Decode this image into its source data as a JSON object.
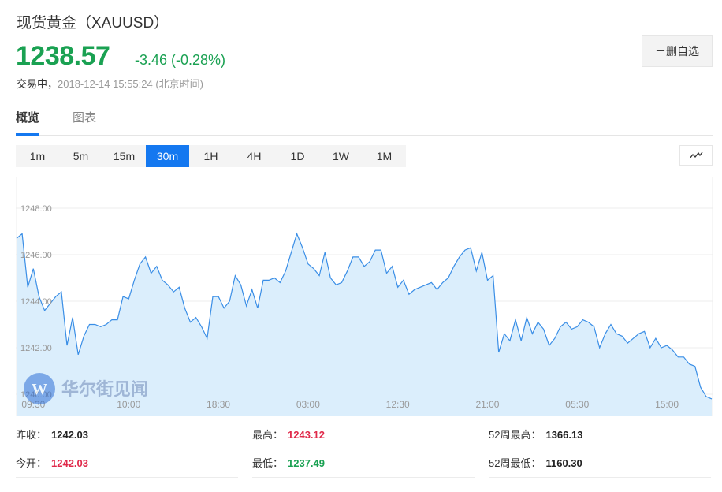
{
  "header": {
    "title": "现货黄金（XAUUSD）",
    "price": "1238.57",
    "change": "-3.46 (-0.28%)",
    "status_label": "交易中，",
    "status_time": "2018-12-14 15:55:24 (北京时间)",
    "watch_button": "－删自选"
  },
  "tabs": [
    {
      "label": "概览",
      "active": true
    },
    {
      "label": "图表",
      "active": false
    }
  ],
  "periods": [
    {
      "label": "1m",
      "active": false
    },
    {
      "label": "5m",
      "active": false
    },
    {
      "label": "15m",
      "active": false
    },
    {
      "label": "30m",
      "active": true
    },
    {
      "label": "1H",
      "active": false
    },
    {
      "label": "4H",
      "active": false
    },
    {
      "label": "1D",
      "active": false
    },
    {
      "label": "1W",
      "active": false
    },
    {
      "label": "1M",
      "active": false
    }
  ],
  "chart_type_icon": "line-chart-icon",
  "watermark": "华尔街见闻",
  "colors": {
    "up_green": "#1aa152",
    "down_red": "#e0294a",
    "accent_blue": "#1478f0",
    "line": "#3a8ee6",
    "area": "#dbeefc"
  },
  "chart_data": {
    "type": "area",
    "y_ticks": [
      "1248.00",
      "1246.00",
      "1244.00",
      "1242.00",
      "1240.00"
    ],
    "x_ticks": [
      "09:30",
      "10:00",
      "18:30",
      "03:00",
      "12:30",
      "21:00",
      "05:30",
      "15:00"
    ],
    "x_tick_index": [
      3,
      20,
      36,
      52,
      68,
      84,
      100,
      116
    ],
    "ylim": [
      1240.0,
      1248.0
    ],
    "grid": true,
    "values": [
      1246.7,
      1246.9,
      1244.6,
      1245.4,
      1244.2,
      1243.6,
      1243.9,
      1244.2,
      1244.4,
      1242.1,
      1243.3,
      1241.7,
      1242.5,
      1243.0,
      1243.0,
      1242.9,
      1243.0,
      1243.2,
      1243.2,
      1244.2,
      1244.1,
      1244.9,
      1245.6,
      1245.9,
      1245.2,
      1245.5,
      1244.9,
      1244.7,
      1244.4,
      1244.6,
      1243.7,
      1243.1,
      1243.3,
      1242.9,
      1242.4,
      1244.2,
      1244.2,
      1243.7,
      1244.0,
      1245.1,
      1244.7,
      1243.8,
      1244.5,
      1243.7,
      1244.9,
      1244.9,
      1245.0,
      1244.8,
      1245.3,
      1246.1,
      1246.9,
      1246.3,
      1245.6,
      1245.4,
      1245.1,
      1246.1,
      1245.0,
      1244.7,
      1244.8,
      1245.3,
      1245.9,
      1245.9,
      1245.5,
      1245.7,
      1246.2,
      1246.2,
      1245.2,
      1245.5,
      1244.6,
      1244.9,
      1244.3,
      1244.5,
      1244.6,
      1244.7,
      1244.8,
      1244.5,
      1244.8,
      1245.0,
      1245.5,
      1245.9,
      1246.2,
      1246.3,
      1245.3,
      1246.1,
      1244.9,
      1245.1,
      1241.8,
      1242.6,
      1242.3,
      1243.2,
      1242.3,
      1243.3,
      1242.6,
      1243.1,
      1242.8,
      1242.1,
      1242.4,
      1242.9,
      1243.1,
      1242.8,
      1242.9,
      1243.2,
      1243.1,
      1242.9,
      1242.0,
      1242.6,
      1243.0,
      1242.6,
      1242.5,
      1242.2,
      1242.4,
      1242.6,
      1242.7,
      1242.0,
      1242.4,
      1242.0,
      1242.1,
      1241.9,
      1241.6,
      1241.6,
      1241.3,
      1241.2,
      1240.3,
      1239.9,
      1239.8
    ]
  },
  "stats": [
    {
      "label": "昨收：",
      "value": "1242.03",
      "tone": "dark"
    },
    {
      "label": "最高：",
      "value": "1243.12",
      "tone": "red"
    },
    {
      "label": "52周最高：",
      "value": "1366.13",
      "tone": "dark"
    },
    {
      "label": "今开：",
      "value": "1242.03",
      "tone": "red"
    },
    {
      "label": "最低：",
      "value": "1237.49",
      "tone": "green"
    },
    {
      "label": "52周最低：",
      "value": "1160.30",
      "tone": "dark"
    }
  ]
}
